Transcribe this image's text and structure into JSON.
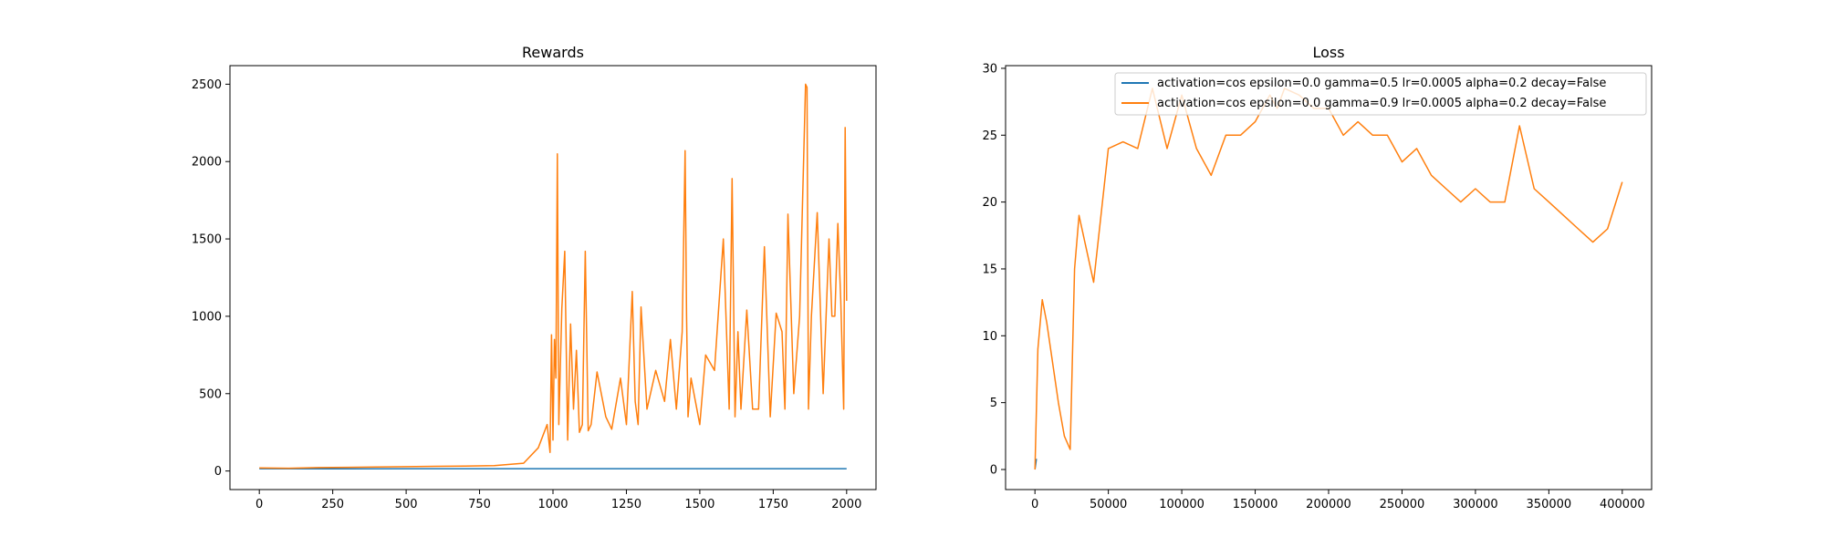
{
  "colors": {
    "blue": "#1f77b4",
    "orange": "#ff7f0e",
    "axis": "#000000",
    "legend_border": "#cccccc"
  },
  "chart_data": [
    {
      "type": "line",
      "title": "Rewards",
      "xlabel": "",
      "ylabel": "",
      "xlim": [
        -100,
        2100
      ],
      "ylim": [
        -120,
        2620
      ],
      "xticks": [
        0,
        250,
        500,
        750,
        1000,
        1250,
        1500,
        1750,
        2000
      ],
      "yticks": [
        0,
        500,
        1000,
        1500,
        2000,
        2500
      ],
      "grid": false,
      "series": [
        {
          "color": "#1f77b4",
          "x": [
            0,
            250,
            500,
            750,
            1000,
            1250,
            1500,
            1750,
            2000
          ],
          "y": [
            15,
            14,
            15,
            15,
            15,
            15,
            15,
            15,
            15
          ]
        },
        {
          "color": "#ff7f0e",
          "x": [
            0,
            100,
            200,
            300,
            400,
            500,
            600,
            700,
            800,
            900,
            950,
            980,
            990,
            995,
            1000,
            1005,
            1010,
            1015,
            1020,
            1030,
            1040,
            1050,
            1060,
            1070,
            1080,
            1090,
            1100,
            1110,
            1120,
            1130,
            1150,
            1180,
            1200,
            1230,
            1250,
            1270,
            1280,
            1290,
            1300,
            1320,
            1350,
            1380,
            1400,
            1420,
            1440,
            1450,
            1455,
            1460,
            1470,
            1500,
            1520,
            1550,
            1580,
            1600,
            1610,
            1620,
            1630,
            1640,
            1660,
            1680,
            1700,
            1720,
            1740,
            1760,
            1780,
            1790,
            1800,
            1820,
            1840,
            1860,
            1865,
            1870,
            1880,
            1900,
            1920,
            1940,
            1950,
            1960,
            1970,
            1980,
            1990,
            1995,
            2000
          ],
          "y": [
            20,
            18,
            22,
            24,
            26,
            28,
            30,
            32,
            35,
            50,
            150,
            300,
            120,
            880,
            200,
            850,
            600,
            2050,
            300,
            1050,
            1420,
            200,
            950,
            400,
            780,
            250,
            300,
            1420,
            260,
            300,
            640,
            350,
            270,
            600,
            300,
            1160,
            450,
            300,
            1060,
            400,
            650,
            450,
            850,
            400,
            900,
            2070,
            1000,
            350,
            600,
            300,
            750,
            650,
            1500,
            400,
            1890,
            350,
            900,
            400,
            1040,
            400,
            400,
            1450,
            350,
            1020,
            900,
            400,
            1660,
            500,
            1000,
            2500,
            2480,
            400,
            1000,
            1670,
            500,
            1500,
            1000,
            1000,
            1600,
            1100,
            400,
            2220,
            1100
          ]
        }
      ]
    },
    {
      "type": "line",
      "title": "Loss",
      "xlabel": "",
      "ylabel": "",
      "xlim": [
        -20000,
        420000
      ],
      "ylim": [
        -1.5,
        30.2
      ],
      "xticks": [
        0,
        50000,
        100000,
        150000,
        200000,
        250000,
        300000,
        350000,
        400000
      ],
      "yticks": [
        0,
        5,
        10,
        15,
        20,
        25,
        30
      ],
      "grid": false,
      "legend": {
        "position": "upper right",
        "entries": [
          {
            "label": "activation=cos epsilon=0.0 gamma=0.5 lr=0.0005 alpha=0.2 decay=False",
            "color": "#1f77b4"
          },
          {
            "label": "activation=cos epsilon=0.0 gamma=0.9 lr=0.0005 alpha=0.2 decay=False",
            "color": "#ff7f0e"
          }
        ]
      },
      "series": [
        {
          "color": "#1f77b4",
          "x": [
            0,
            1000
          ],
          "y": [
            0,
            0.8
          ]
        },
        {
          "color": "#ff7f0e",
          "x": [
            0,
            2000,
            5000,
            8000,
            12000,
            16000,
            20000,
            24000,
            27000,
            30000,
            40000,
            50000,
            60000,
            70000,
            80000,
            90000,
            100000,
            110000,
            120000,
            130000,
            140000,
            150000,
            160000,
            165000,
            170000,
            180000,
            190000,
            200000,
            210000,
            220000,
            230000,
            240000,
            250000,
            260000,
            270000,
            280000,
            290000,
            300000,
            310000,
            320000,
            330000,
            340000,
            350000,
            360000,
            370000,
            380000,
            390000,
            400000
          ],
          "y": [
            0,
            9,
            12.7,
            11,
            8,
            5,
            2.5,
            1.5,
            15,
            19,
            14,
            24,
            24.5,
            24,
            28.5,
            24,
            28,
            24,
            22,
            25,
            25,
            26,
            28,
            27,
            28.5,
            28,
            27,
            27,
            25,
            26,
            25,
            25,
            23,
            24,
            22,
            21,
            20,
            21,
            20,
            20,
            25.7,
            21,
            20,
            19,
            18,
            17,
            18,
            21.5
          ]
        }
      ]
    }
  ]
}
